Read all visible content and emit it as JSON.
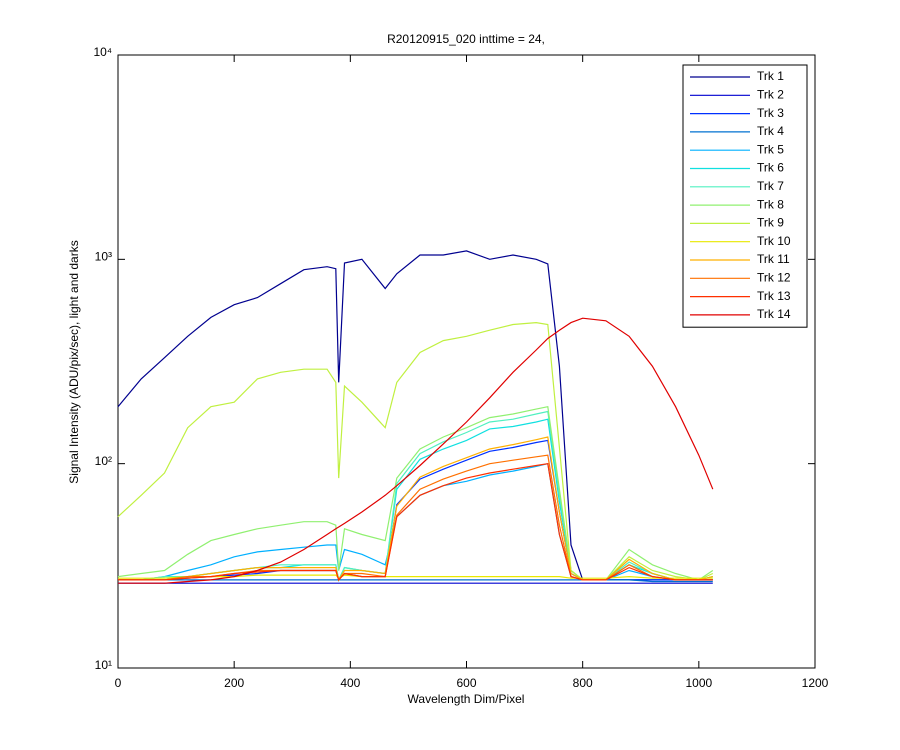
{
  "chart_data": {
    "type": "line",
    "title": "R20120915_020 inttime = 24,",
    "x_label": "Wavelength Dim/Pixel",
    "y_label": "Signal Intensity (ADU/pix/sec), light and darks",
    "log_y": true,
    "grid": false,
    "legend": "top-right",
    "xlim": [
      0,
      1200
    ],
    "xticks": [
      0,
      200,
      400,
      600,
      800,
      1000,
      1200
    ],
    "ylim": [
      10,
      10000
    ],
    "yticks": [
      {
        "value": 10,
        "label": "10¹"
      },
      {
        "value": 100,
        "label": "10²"
      },
      {
        "value": 1000,
        "label": "10³"
      },
      {
        "value": 10000,
        "label": "10⁴"
      }
    ],
    "x": [
      0,
      40,
      80,
      120,
      160,
      200,
      240,
      280,
      320,
      360,
      375,
      380,
      390,
      420,
      460,
      480,
      520,
      560,
      600,
      640,
      680,
      720,
      740,
      760,
      780,
      800,
      840,
      880,
      920,
      960,
      1000,
      1024
    ],
    "series": [
      {
        "name": "Trk 1",
        "color": "#00008f",
        "values": [
          190,
          260,
          330,
          420,
          520,
          600,
          650,
          760,
          890,
          920,
          900,
          250,
          960,
          1000,
          720,
          850,
          1050,
          1050,
          1100,
          1000,
          1050,
          1000,
          950,
          300,
          40,
          27,
          27,
          27,
          27,
          27,
          27,
          27
        ]
      },
      {
        "name": "Trk 2",
        "color": "#0000cf",
        "values": [
          26,
          26,
          26,
          26,
          26,
          26,
          26,
          26,
          26,
          26,
          26,
          26,
          26,
          26,
          26,
          26,
          26,
          26,
          26,
          26,
          26,
          26,
          26,
          26,
          26,
          26,
          26,
          26,
          26,
          26,
          26,
          26
        ]
      },
      {
        "name": "Trk 3",
        "color": "#0030ff",
        "values": [
          27,
          27,
          27,
          27.5,
          28,
          28.5,
          29,
          30,
          30,
          30,
          30,
          27,
          29,
          28,
          28,
          63,
          84,
          94,
          104,
          115,
          120,
          127,
          130,
          58,
          29,
          27,
          27,
          27,
          27,
          27,
          27,
          27
        ]
      },
      {
        "name": "Trk 4",
        "color": "#0070d0",
        "values": [
          27,
          27,
          27,
          27,
          27,
          27,
          27,
          27,
          27,
          27,
          27,
          27,
          27,
          27,
          27,
          27,
          27,
          27,
          27,
          27,
          27,
          27,
          27,
          27,
          27,
          27,
          27,
          27,
          26.5,
          26.5,
          26.5,
          26.5
        ]
      },
      {
        "name": "Trk 5",
        "color": "#00b0ff",
        "values": [
          27,
          27,
          28,
          30,
          32,
          35,
          37,
          38,
          39,
          40,
          40,
          30,
          38,
          36,
          32,
          55,
          70,
          78,
          82,
          88,
          92,
          97,
          100,
          45,
          28,
          27,
          27,
          30,
          28,
          27,
          27,
          27
        ]
      },
      {
        "name": "Trk 6",
        "color": "#10e0e0",
        "values": [
          27,
          27,
          27,
          28,
          29,
          30,
          31,
          31,
          32,
          32,
          32,
          27,
          31,
          30,
          29,
          75,
          105,
          118,
          130,
          148,
          152,
          160,
          165,
          65,
          30,
          27,
          27,
          32,
          29,
          27,
          27,
          28
        ]
      },
      {
        "name": "Trk 7",
        "color": "#50f0c0",
        "values": [
          27,
          27,
          28,
          28,
          29,
          30,
          31,
          32,
          32,
          32,
          32,
          27,
          31,
          30,
          29,
          80,
          112,
          128,
          142,
          160,
          165,
          175,
          180,
          70,
          30,
          27,
          27,
          33,
          29,
          27,
          27,
          28
        ]
      },
      {
        "name": "Trk 8",
        "color": "#90f070",
        "values": [
          28,
          29,
          30,
          36,
          42,
          45,
          48,
          50,
          52,
          52,
          50,
          30,
          48,
          45,
          42,
          85,
          118,
          135,
          150,
          168,
          175,
          185,
          190,
          75,
          30,
          27,
          27,
          38,
          32,
          29,
          27,
          30
        ]
      },
      {
        "name": "Trk 9",
        "color": "#c0f040",
        "values": [
          55,
          70,
          90,
          150,
          190,
          200,
          260,
          280,
          290,
          290,
          250,
          85,
          240,
          200,
          150,
          250,
          350,
          400,
          420,
          450,
          480,
          490,
          480,
          120,
          30,
          27,
          27,
          35,
          30,
          28,
          27,
          29
        ]
      },
      {
        "name": "Trk 10",
        "color": "#e8e800",
        "values": [
          27.5,
          27.5,
          27.5,
          28,
          28,
          28,
          28.5,
          28.5,
          28.5,
          28.5,
          28.5,
          27.5,
          28.5,
          28,
          28,
          28,
          28,
          28,
          28,
          28,
          28,
          28,
          28,
          28,
          27.5,
          27.5,
          27.5,
          28,
          27.5,
          27.5,
          27.5,
          27.5
        ]
      },
      {
        "name": "Trk 11",
        "color": "#ffb000",
        "values": [
          27,
          27,
          27,
          28,
          29,
          30,
          31,
          31,
          31,
          31,
          31,
          27,
          30,
          30,
          29,
          62,
          86,
          97,
          107,
          118,
          124,
          131,
          135,
          58,
          29,
          27,
          27,
          34,
          29,
          27,
          27,
          28
        ]
      },
      {
        "name": "Trk 12",
        "color": "#ff7000",
        "values": [
          27,
          27,
          27,
          28,
          28,
          29,
          30,
          30,
          30,
          30,
          30,
          27,
          29,
          29,
          28,
          56,
          75,
          84,
          92,
          100,
          104,
          108,
          110,
          50,
          28,
          27,
          27,
          32,
          28,
          27,
          27,
          27
        ]
      },
      {
        "name": "Trk 13",
        "color": "#ff3000",
        "values": [
          27,
          27,
          27,
          27.5,
          28,
          29,
          29.5,
          30,
          30,
          30,
          30,
          27,
          29,
          28,
          28,
          55,
          70,
          78,
          85,
          90,
          94,
          98,
          100,
          45,
          28,
          27,
          27,
          31,
          28,
          27,
          27,
          27
        ]
      },
      {
        "name": "Trk 14",
        "color": "#e00000",
        "values": [
          26,
          26,
          26,
          26.5,
          27,
          28,
          30,
          33,
          38,
          45,
          48,
          49,
          51,
          58,
          70,
          78,
          98,
          125,
          160,
          210,
          280,
          360,
          410,
          450,
          490,
          515,
          500,
          420,
          300,
          190,
          110,
          75
        ]
      }
    ]
  }
}
